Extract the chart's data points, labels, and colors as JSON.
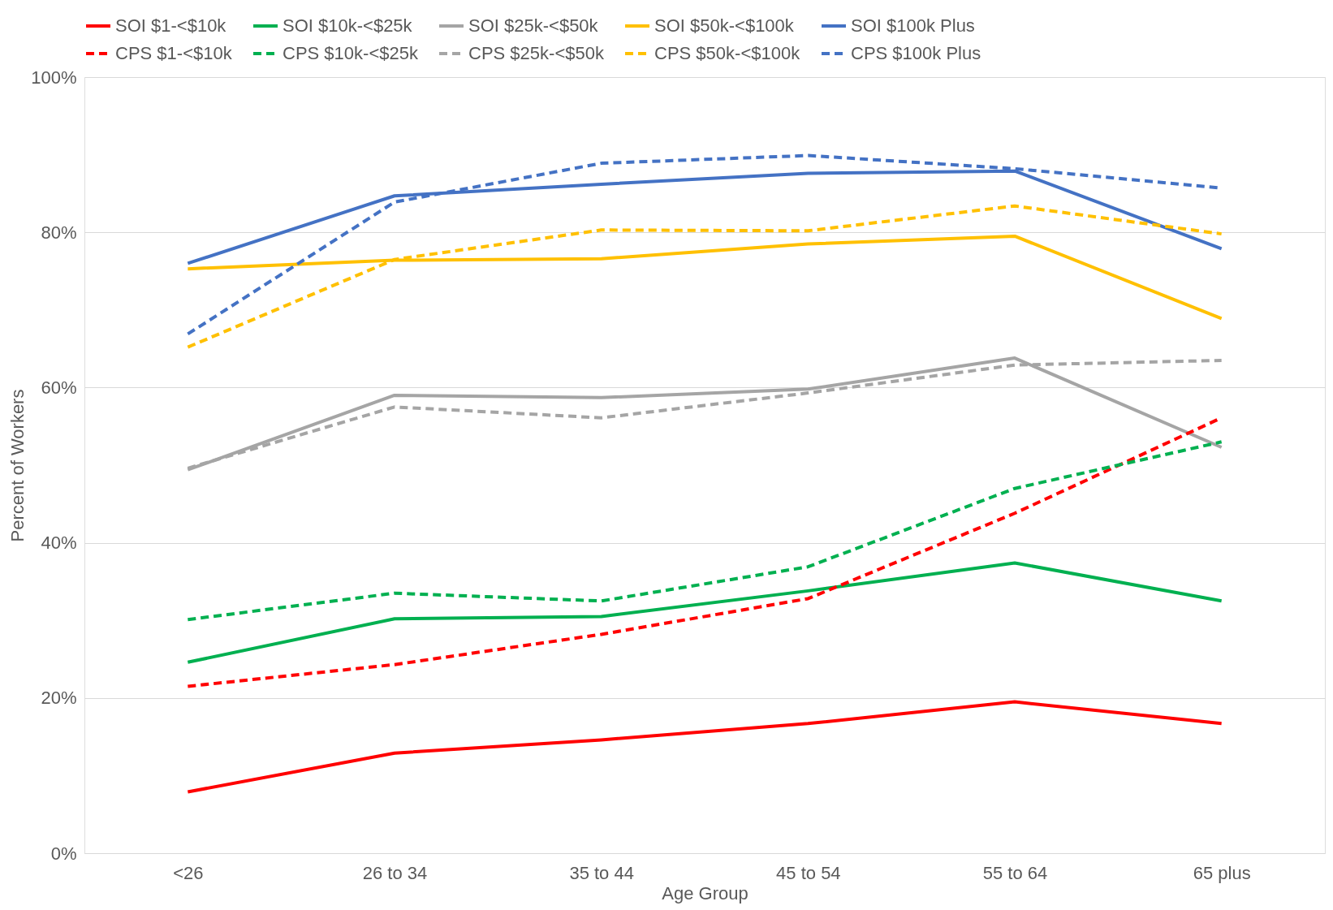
{
  "chart_data": {
    "type": "line",
    "xlabel": "Age Group",
    "ylabel": "Percent of Workers",
    "categories": [
      "<26",
      "26 to 34",
      "35 to 44",
      "45 to 54",
      "55 to 64",
      "65 plus"
    ],
    "ylim": [
      0,
      100
    ],
    "yticks": [
      {
        "value": 0,
        "label": "0%"
      },
      {
        "value": 20,
        "label": "20%"
      },
      {
        "value": 40,
        "label": "40%"
      },
      {
        "value": 60,
        "label": "60%"
      },
      {
        "value": 80,
        "label": "80%"
      },
      {
        "value": 100,
        "label": "100%"
      }
    ],
    "grid": "y",
    "legend": "top",
    "marker": "none",
    "series": [
      {
        "name": "SOI $1-<$10k",
        "color": "#ff0000",
        "line_style": "solid",
        "values": [
          7.9,
          12.9,
          14.6,
          16.7,
          19.5,
          16.7
        ]
      },
      {
        "name": "SOI $10k-<$25k",
        "color": "#00b050",
        "line_style": "solid",
        "values": [
          24.6,
          30.2,
          30.5,
          33.8,
          37.4,
          32.5
        ]
      },
      {
        "name": "SOI $25k-<$50k",
        "color": "#a5a5a5",
        "line_style": "solid",
        "values": [
          49.4,
          59.0,
          58.7,
          59.8,
          63.8,
          52.3
        ]
      },
      {
        "name": "SOI $50k-<$100k",
        "color": "#ffc000",
        "line_style": "solid",
        "values": [
          75.3,
          76.4,
          76.6,
          78.5,
          79.5,
          68.9
        ]
      },
      {
        "name": "SOI $100k Plus",
        "color": "#4472c4",
        "line_style": "solid",
        "values": [
          76.0,
          84.7,
          86.2,
          87.6,
          87.9,
          77.9
        ]
      },
      {
        "name": "CPS $1-<$10k",
        "color": "#ff0000",
        "line_style": "dashed",
        "values": [
          21.5,
          24.3,
          28.2,
          32.8,
          43.8,
          56.1
        ]
      },
      {
        "name": "CPS $10k-<$25k",
        "color": "#00b050",
        "line_style": "dashed",
        "values": [
          30.1,
          33.5,
          32.5,
          36.9,
          47.0,
          53.0
        ]
      },
      {
        "name": "CPS $25k-<$50k",
        "color": "#a5a5a5",
        "line_style": "dashed",
        "values": [
          49.6,
          57.5,
          56.1,
          59.3,
          62.9,
          63.5
        ]
      },
      {
        "name": "CPS $50k-<$100k",
        "color": "#ffc000",
        "line_style": "dashed",
        "values": [
          65.2,
          76.5,
          80.3,
          80.2,
          83.4,
          79.8
        ]
      },
      {
        "name": "CPS $100k Plus",
        "color": "#4472c4",
        "line_style": "dashed",
        "values": [
          66.9,
          83.9,
          88.9,
          89.9,
          88.2,
          85.7
        ]
      }
    ]
  }
}
